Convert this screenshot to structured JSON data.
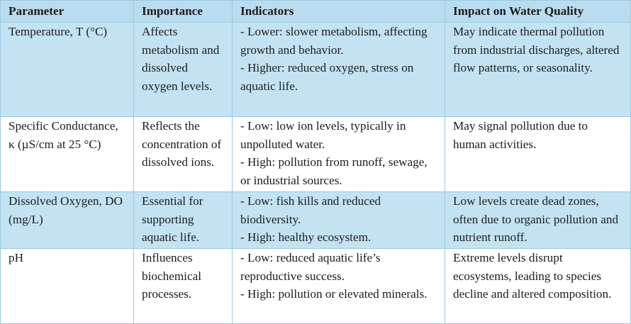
{
  "table": {
    "headers": [
      "Parameter",
      "Importance",
      "Indicators",
      "Impact on Water Quality"
    ],
    "rows": [
      {
        "parameter": "Temperature, T (°C)",
        "importance": "Affects metabolism and dissolved oxygen levels.",
        "indicators": [
          "- Lower: slower metabolism, affecting growth and behavior.",
          "- Higher: reduced oxygen, stress on aquatic life."
        ],
        "impact": "May indicate thermal pollution from industrial discharges, altered flow patterns, or seasonality."
      },
      {
        "parameter": "Specific Conductance, κ (µS/cm at 25 °C)",
        "importance": "Reflects the concentration of dissolved ions.",
        "indicators": [
          "- Low: low ion levels, typically in unpolluted water.",
          "- High: pollution from runoff, sewage, or industrial sources."
        ],
        "impact": "May signal pollution due to human activities."
      },
      {
        "parameter": "Dissolved Oxygen, DO (mg/L)",
        "importance": "Essential for supporting aquatic life.",
        "indicators": [
          "- Low: fish kills and reduced biodiversity.",
          "- High: healthy ecosystem."
        ],
        "impact": "Low levels create dead zones, often due to organic pollution and nutrient runoff."
      },
      {
        "parameter": "pH",
        "importance": "Influences biochemical processes.",
        "indicators": [
          "- Low: reduced aquatic life’s reproductive success.",
          "- High: pollution or elevated minerals."
        ],
        "impact": "Extreme levels disrupt ecosystems, leading to species decline and altered composition."
      }
    ]
  }
}
